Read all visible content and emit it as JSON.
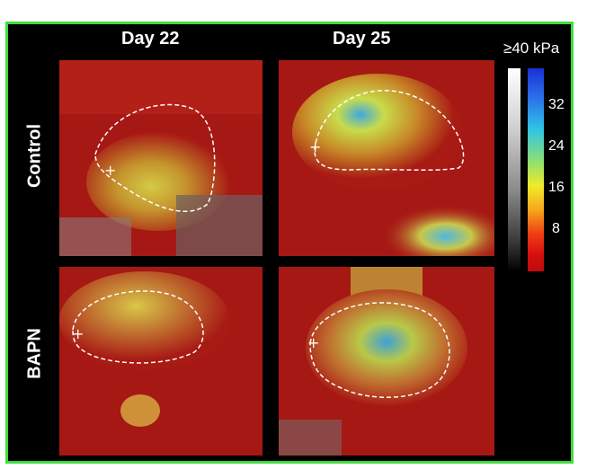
{
  "columns": [
    "Day 22",
    "Day 25"
  ],
  "rows": [
    "Control",
    "BAPN"
  ],
  "colorbar": {
    "title": "≥40 kPa",
    "ticks": [
      "32",
      "24",
      "16",
      "8"
    ]
  },
  "colors": {
    "frame": "#3fdc3f",
    "background": "#000000",
    "tissue_red": "#b81a14",
    "stiff_yellow": "#e8e03a",
    "stiff_blue": "#2f9fe0"
  },
  "panels": [
    {
      "row": "Control",
      "col": "Day 22",
      "marker": "+"
    },
    {
      "row": "Control",
      "col": "Day 25",
      "marker": "+"
    },
    {
      "row": "BAPN",
      "col": "Day 22",
      "marker": "+"
    },
    {
      "row": "BAPN",
      "col": "Day 25",
      "marker": "+"
    }
  ]
}
